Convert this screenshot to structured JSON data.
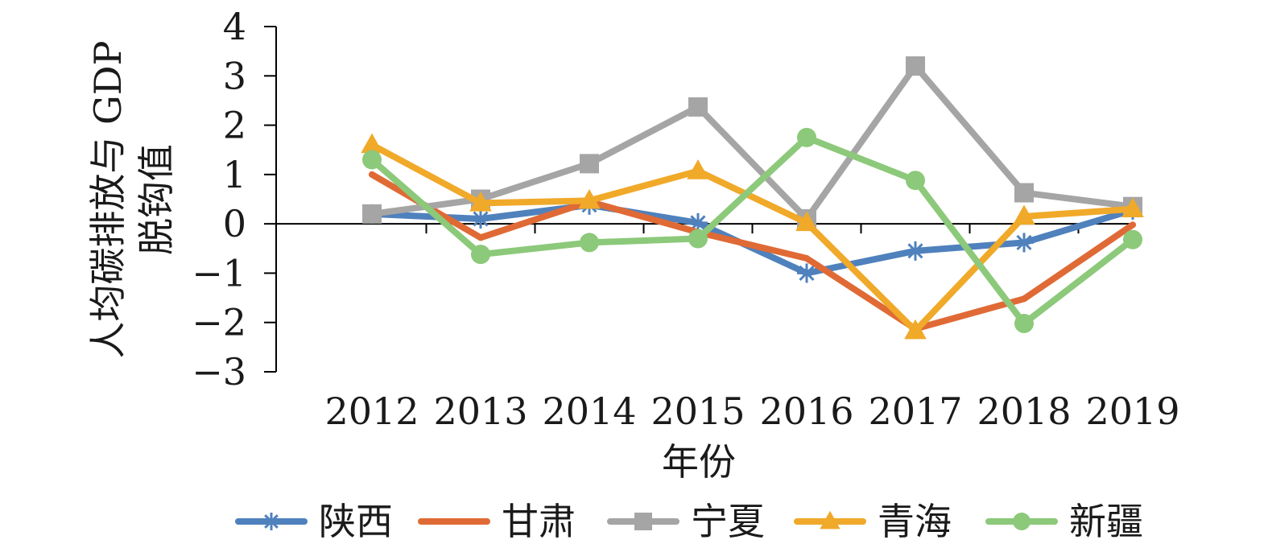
{
  "chart_data": {
    "type": "line",
    "xlabel": "年份",
    "ylabel_lines": [
      "人均碳排放与 GDP",
      "脱钩值"
    ],
    "x": [
      "2012",
      "2013",
      "2014",
      "2015",
      "2016",
      "2017",
      "2018",
      "2019"
    ],
    "ylim": [
      -3,
      4
    ],
    "yticks": [
      "4",
      "3",
      "2",
      "1",
      "0",
      "−1",
      "−2",
      "−3"
    ],
    "ytick_values": [
      4,
      3,
      2,
      1,
      0,
      -1,
      -2,
      -3
    ],
    "grid": false,
    "legend_position": "bottom",
    "series": [
      {
        "name": "陕西",
        "color": "#4f81bd",
        "marker": "asterisk",
        "values": [
          0.2,
          0.1,
          0.38,
          0.02,
          -1.0,
          -0.55,
          -0.38,
          0.28
        ]
      },
      {
        "name": "甘肃",
        "color": "#e06a35",
        "marker": "none",
        "values": [
          1.0,
          -0.28,
          0.45,
          -0.17,
          -0.7,
          -2.13,
          -1.52,
          -0.02
        ]
      },
      {
        "name": "宁夏",
        "color": "#a5a5a5",
        "marker": "square",
        "values": [
          0.2,
          0.5,
          1.22,
          2.37,
          0.1,
          3.2,
          0.63,
          0.35
        ]
      },
      {
        "name": "青海",
        "color": "#f0a929",
        "marker": "triangle",
        "values": [
          1.6,
          0.42,
          0.47,
          1.07,
          0.02,
          -2.17,
          0.15,
          0.3
        ]
      },
      {
        "name": "新疆",
        "color": "#8cc97a",
        "marker": "circle",
        "values": [
          1.3,
          -0.62,
          -0.38,
          -0.3,
          1.75,
          0.88,
          -2.02,
          -0.32
        ]
      }
    ]
  }
}
